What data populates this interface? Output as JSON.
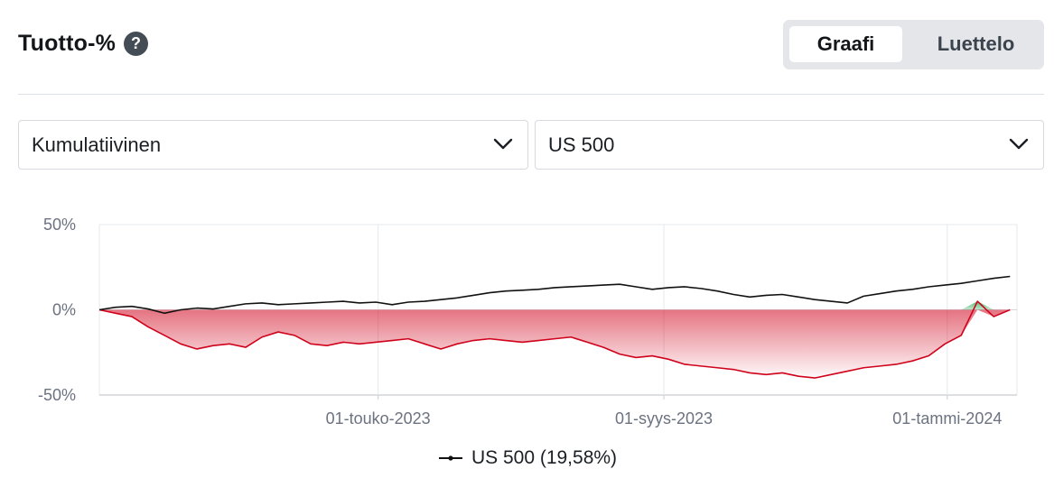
{
  "header": {
    "title": "Tuotto-%",
    "help_icon": "question-circle-icon"
  },
  "view_toggle": {
    "active": "Graafi",
    "inactive": "Luettelo"
  },
  "filters": {
    "mode": {
      "value": "Kumulatiivinen",
      "icon": "chevron-down-icon"
    },
    "instrument": {
      "value": "US 500",
      "icon": "chevron-down-icon"
    }
  },
  "colors": {
    "line": "#111111",
    "negative": "#d0021b",
    "positive": "#1aa34a",
    "grid": "#e6e8eb"
  },
  "legend": {
    "label": "US 500 (19,58%)"
  },
  "chart_data": {
    "type": "line",
    "ylim": [
      -50,
      50
    ],
    "yticks": [
      "50%",
      "0%",
      "-50%"
    ],
    "xticks": [
      "01-touko-2023",
      "01-syys-2023",
      "01-tammi-2024"
    ],
    "xlim": [
      "2023-01-01",
      "2024-01-31"
    ],
    "series": [
      {
        "name": "US 500",
        "x": [
          "2023-01-01",
          "2023-01-08",
          "2023-01-15",
          "2023-01-22",
          "2023-01-29",
          "2023-02-05",
          "2023-02-12",
          "2023-02-19",
          "2023-02-26",
          "2023-03-05",
          "2023-03-12",
          "2023-03-19",
          "2023-03-26",
          "2023-04-02",
          "2023-04-09",
          "2023-04-16",
          "2023-04-23",
          "2023-04-30",
          "2023-05-07",
          "2023-05-14",
          "2023-05-21",
          "2023-05-28",
          "2023-06-04",
          "2023-06-11",
          "2023-06-18",
          "2023-06-25",
          "2023-07-02",
          "2023-07-09",
          "2023-07-16",
          "2023-07-23",
          "2023-07-30",
          "2023-08-06",
          "2023-08-13",
          "2023-08-20",
          "2023-08-27",
          "2023-09-03",
          "2023-09-10",
          "2023-09-17",
          "2023-09-24",
          "2023-10-01",
          "2023-10-08",
          "2023-10-15",
          "2023-10-22",
          "2023-10-29",
          "2023-11-05",
          "2023-11-12",
          "2023-11-19",
          "2023-11-26",
          "2023-12-03",
          "2023-12-10",
          "2023-12-17",
          "2023-12-24",
          "2023-12-31",
          "2024-01-07",
          "2024-01-14",
          "2024-01-21",
          "2024-01-28"
        ],
        "values": [
          0,
          1.5,
          2,
          0.5,
          -2,
          0,
          1,
          0.5,
          2,
          3.5,
          4,
          3,
          3.5,
          4,
          4.5,
          5,
          4,
          4.5,
          3,
          4.5,
          5,
          6,
          7,
          8.5,
          10,
          11,
          11.5,
          12,
          13,
          13.5,
          14,
          14.5,
          15,
          13.5,
          12,
          13,
          13.5,
          12.5,
          11,
          9,
          7.5,
          8.5,
          9,
          7.5,
          6,
          5,
          4,
          8,
          9.5,
          11,
          12,
          13.5,
          14.5,
          15.5,
          17,
          18.5,
          19.58
        ]
      }
    ],
    "drawdown": {
      "x": [
        "2023-01-01",
        "2023-01-08",
        "2023-01-15",
        "2023-01-22",
        "2023-01-29",
        "2023-02-05",
        "2023-02-12",
        "2023-02-19",
        "2023-02-26",
        "2023-03-05",
        "2023-03-12",
        "2023-03-19",
        "2023-03-26",
        "2023-04-02",
        "2023-04-09",
        "2023-04-16",
        "2023-04-23",
        "2023-04-30",
        "2023-05-07",
        "2023-05-14",
        "2023-05-21",
        "2023-05-28",
        "2023-06-04",
        "2023-06-11",
        "2023-06-18",
        "2023-06-25",
        "2023-07-02",
        "2023-07-09",
        "2023-07-16",
        "2023-07-23",
        "2023-07-30",
        "2023-08-06",
        "2023-08-13",
        "2023-08-20",
        "2023-08-27",
        "2023-09-03",
        "2023-09-10",
        "2023-09-17",
        "2023-09-24",
        "2023-10-01",
        "2023-10-08",
        "2023-10-15",
        "2023-10-22",
        "2023-10-29",
        "2023-11-05",
        "2023-11-12",
        "2023-11-19",
        "2023-11-26",
        "2023-12-03",
        "2023-12-10",
        "2023-12-17",
        "2023-12-24",
        "2023-12-31",
        "2024-01-07",
        "2024-01-14",
        "2024-01-21",
        "2024-01-28"
      ],
      "values": [
        0,
        -2,
        -4,
        -10,
        -15,
        -20,
        -23,
        -21,
        -20,
        -22,
        -16,
        -13,
        -15,
        -20,
        -21,
        -19,
        -20,
        -19,
        -18,
        -17,
        -20,
        -23,
        -20,
        -18,
        -17,
        -18,
        -19,
        -18,
        -17,
        -16,
        -19,
        -22,
        -26,
        -28,
        -27,
        -29,
        -32,
        -33,
        -34,
        -35,
        -37,
        -38,
        -37,
        -39,
        -40,
        -38,
        -36,
        -34,
        -33,
        -32,
        -30,
        -27,
        -20,
        -15,
        5,
        -4,
        0
      ]
    }
  }
}
